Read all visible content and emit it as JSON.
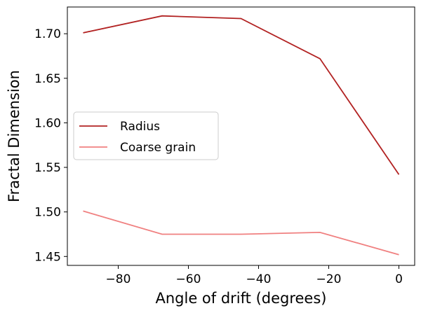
{
  "chart_data": {
    "type": "line",
    "title": "",
    "xlabel": "Angle of drift (degrees)",
    "ylabel": "Fractal Dimension",
    "xlim": [
      -94.5,
      4.5
    ],
    "ylim": [
      1.44,
      1.73
    ],
    "xticks": [
      -80,
      -60,
      -40,
      -20,
      0
    ],
    "xtick_labels": [
      "−80",
      "−60",
      "−40",
      "−20",
      "0"
    ],
    "yticks": [
      1.45,
      1.5,
      1.55,
      1.6,
      1.65,
      1.7
    ],
    "ytick_labels": [
      "1.45",
      "1.50",
      "1.55",
      "1.60",
      "1.65",
      "1.70"
    ],
    "grid": false,
    "legend_position": "center-left",
    "series": [
      {
        "name": "Radius",
        "color": "#b22222",
        "x": [
          -90,
          -67.5,
          -45,
          -22.5,
          0
        ],
        "y": [
          1.701,
          1.72,
          1.717,
          1.672,
          1.542
        ]
      },
      {
        "name": "Coarse grain",
        "color": "#f08080",
        "x": [
          -90,
          -67.5,
          -45,
          -22.5,
          0
        ],
        "y": [
          1.501,
          1.475,
          1.475,
          1.477,
          1.452
        ]
      }
    ]
  }
}
